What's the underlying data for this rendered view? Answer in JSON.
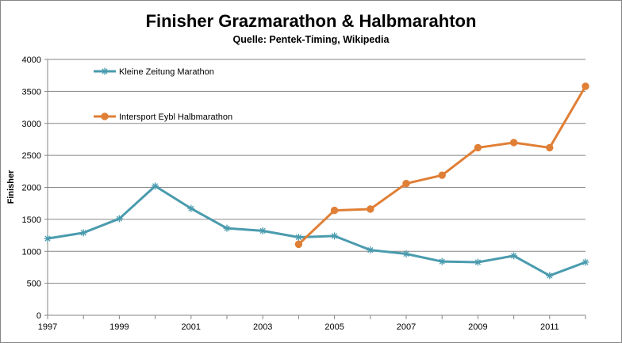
{
  "chart_data": {
    "type": "line",
    "title": "Finisher Grazmarathon & Halbmarahton",
    "subtitle": "Quelle: Pentek-Timing, Wikipedia",
    "xlabel": "",
    "ylabel": "Finisher",
    "x_range": [
      1997,
      2012
    ],
    "x_ticks": [
      1997,
      1999,
      2001,
      2003,
      2005,
      2007,
      2009,
      2011
    ],
    "ylim": [
      0,
      4000
    ],
    "y_ticks": [
      0,
      500,
      1000,
      1500,
      2000,
      2500,
      3000,
      3500,
      4000
    ],
    "grid": "horizontal",
    "legend_position": "top-left",
    "series": [
      {
        "name": "Kleine Zeitung Marathon",
        "color": "#4A9BAE",
        "marker": "star",
        "x": [
          1997,
          1998,
          1999,
          2000,
          2001,
          2002,
          2003,
          2004,
          2005,
          2006,
          2007,
          2008,
          2009,
          2010,
          2011,
          2012
        ],
        "values": [
          1200,
          1290,
          1510,
          2020,
          1670,
          1360,
          1320,
          1220,
          1240,
          1020,
          960,
          840,
          830,
          930,
          620,
          830
        ]
      },
      {
        "name": "Intersport Eybl Halbmarathon",
        "color": "#E07F36",
        "marker": "circle",
        "x": [
          2004,
          2005,
          2006,
          2007,
          2008,
          2009,
          2010,
          2011,
          2012
        ],
        "values": [
          1110,
          1640,
          1660,
          2060,
          2190,
          2620,
          2700,
          2620,
          3580
        ]
      }
    ]
  }
}
